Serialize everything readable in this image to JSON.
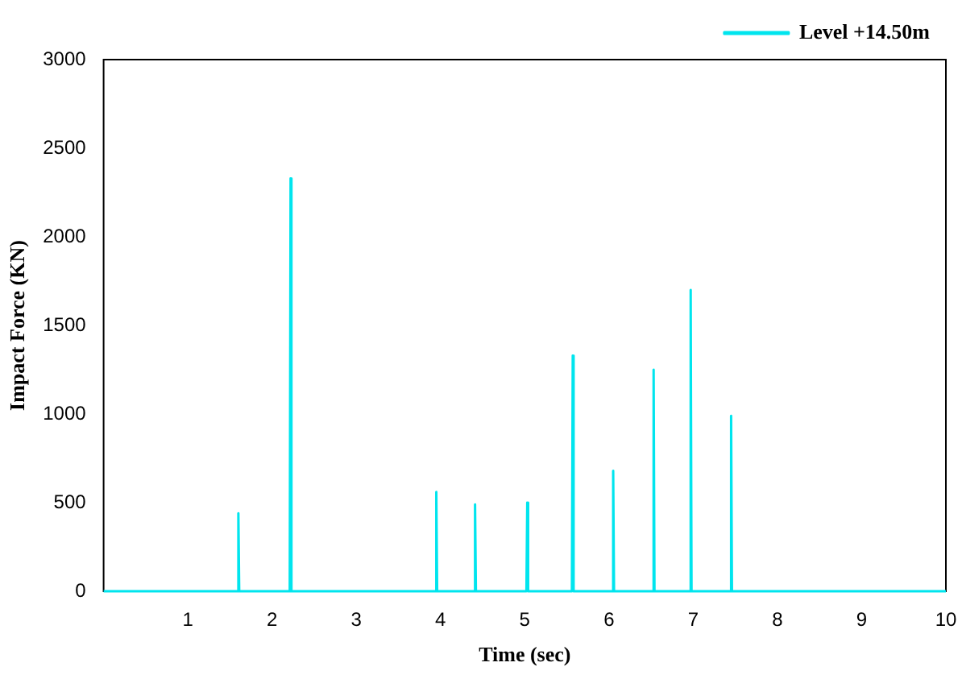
{
  "chart_data": {
    "type": "line",
    "xlabel": "Time (sec)",
    "ylabel": "Impact Force (KN)",
    "series": [
      {
        "name": "Level +14.50m",
        "color": "#00e5ee",
        "x": [
          0,
          1.59,
          1.6,
          1.61,
          2.21,
          2.22,
          2.23,
          3.94,
          3.95,
          3.96,
          4.4,
          4.41,
          4.42,
          5.02,
          5.03,
          5.04,
          5.56,
          5.57,
          5.58,
          6.04,
          6.05,
          6.06,
          6.52,
          6.53,
          6.54,
          6.96,
          6.97,
          6.98,
          7.44,
          7.45,
          7.46,
          10
        ],
        "values": [
          0,
          0,
          440,
          0,
          0,
          2330,
          0,
          0,
          560,
          0,
          0,
          490,
          0,
          0,
          500,
          0,
          0,
          1330,
          0,
          0,
          680,
          0,
          0,
          1250,
          0,
          0,
          1700,
          0,
          0,
          990,
          0,
          0
        ]
      }
    ],
    "xlim": [
      0,
      10
    ],
    "xticks": [
      1,
      2,
      3,
      4,
      5,
      6,
      7,
      8,
      9,
      10
    ],
    "ylim": [
      0,
      3000
    ],
    "yticks": [
      0,
      500,
      1000,
      1500,
      2000,
      2500,
      3000
    ],
    "grid": false,
    "legend": "top right",
    "marker": "none",
    "line_style": "solid"
  }
}
